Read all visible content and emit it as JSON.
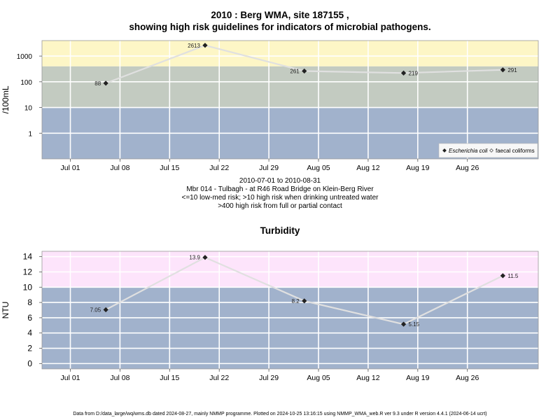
{
  "chart1": {
    "title_line1": "2010 : Berg WMA, site 187155 ,",
    "title_line2": "showing high risk guidelines for indicators of microbial pathogens.",
    "info_lines": [
      "2010-07-01 to 2010-08-31",
      "Mbr 014 - Tulbagh - at R46 Road Bridge on Klein-Berg River",
      "<=10 low-med risk; >10 high risk when drinking untreated water",
      ">400 high risk from full or partial contact"
    ]
  },
  "chart2": {
    "title": "Turbidity"
  },
  "footer": "Data from D:/data_large/wq/wms.db dated 2024-08-27, mainly NMMP programme. Plotted on 2024-10-25 13:16:15 using NMMP_WMA_web.R ver 9.3 under R version 4.4.1 (2024-06-14 ucrt)",
  "chart_data": [
    {
      "type": "scatter",
      "title": "2010 : Berg WMA, site 187155 , showing high risk guidelines for indicators of microbial pathogens.",
      "ylabel": "/100mL",
      "yscale": "log",
      "ylim": [
        0.1,
        4000
      ],
      "xlim": [
        "2010-06-27",
        "2010-09-05"
      ],
      "x_ticks": [
        "Jul 01",
        "Jul 08",
        "Jul 15",
        "Jul 22",
        "Jul 29",
        "Aug 05",
        "Aug 12",
        "Aug 19",
        "Aug 26"
      ],
      "x_tick_dates": [
        "2010-07-01",
        "2010-07-08",
        "2010-07-15",
        "2010-07-22",
        "2010-07-29",
        "2010-08-05",
        "2010-08-12",
        "2010-08-19",
        "2010-08-26"
      ],
      "y_ticks": [
        1,
        10,
        100,
        1000
      ],
      "y_tick_labels": [
        "1",
        "10",
        "100",
        "1000"
      ],
      "bands": [
        {
          "from": 0.1,
          "to": 10,
          "color": "#a1b2cc"
        },
        {
          "from": 10,
          "to": 400,
          "color": "#c3cbc1"
        },
        {
          "from": 400,
          "to": 4000,
          "color": "#fdf6c6"
        }
      ],
      "grid": true,
      "legend_position": "bottom-right",
      "series": [
        {
          "name": "Escherichia coli",
          "marker": "diamond",
          "color": "#222222",
          "x": [
            "2010-07-06",
            "2010-07-20",
            "2010-08-03",
            "2010-08-17",
            "2010-08-31"
          ],
          "y": [
            88,
            2613,
            261,
            219,
            291
          ],
          "labels": [
            "88",
            "2613",
            "261",
            "219",
            "291"
          ]
        },
        {
          "name": "faecal coliforms",
          "marker": "hollow-diamond",
          "color": "#444444",
          "x": [],
          "y": []
        }
      ],
      "trend_color": "#e0e0e0"
    },
    {
      "type": "scatter",
      "title": "Turbidity",
      "ylabel": "NTU",
      "ylim": [
        -0.7,
        14.7
      ],
      "xlim": [
        "2010-06-27",
        "2010-09-05"
      ],
      "x_ticks": [
        "Jul 01",
        "Jul 08",
        "Jul 15",
        "Jul 22",
        "Jul 29",
        "Aug 05",
        "Aug 12",
        "Aug 19",
        "Aug 26"
      ],
      "x_tick_dates": [
        "2010-07-01",
        "2010-07-08",
        "2010-07-15",
        "2010-07-22",
        "2010-07-29",
        "2010-08-05",
        "2010-08-12",
        "2010-08-19",
        "2010-08-26"
      ],
      "y_ticks": [
        0,
        2,
        4,
        6,
        8,
        10,
        12,
        14
      ],
      "y_tick_labels": [
        "0",
        "2",
        "4",
        "6",
        "8",
        "10",
        "12",
        "14"
      ],
      "bands": [
        {
          "from": -0.7,
          "to": 10,
          "color": "#a1b2cc"
        },
        {
          "from": 10,
          "to": 14.7,
          "color": "#fde4fb"
        }
      ],
      "grid": true,
      "series": [
        {
          "name": "Turbidity",
          "marker": "diamond",
          "color": "#222222",
          "x": [
            "2010-07-06",
            "2010-07-20",
            "2010-08-03",
            "2010-08-17",
            "2010-08-31"
          ],
          "y": [
            7.05,
            13.9,
            8.2,
            5.15,
            11.5
          ],
          "labels": [
            "7.05",
            "13.9",
            "8.2",
            "5.15",
            "11.5"
          ]
        }
      ],
      "trend_color": "#e0e0e0"
    }
  ]
}
